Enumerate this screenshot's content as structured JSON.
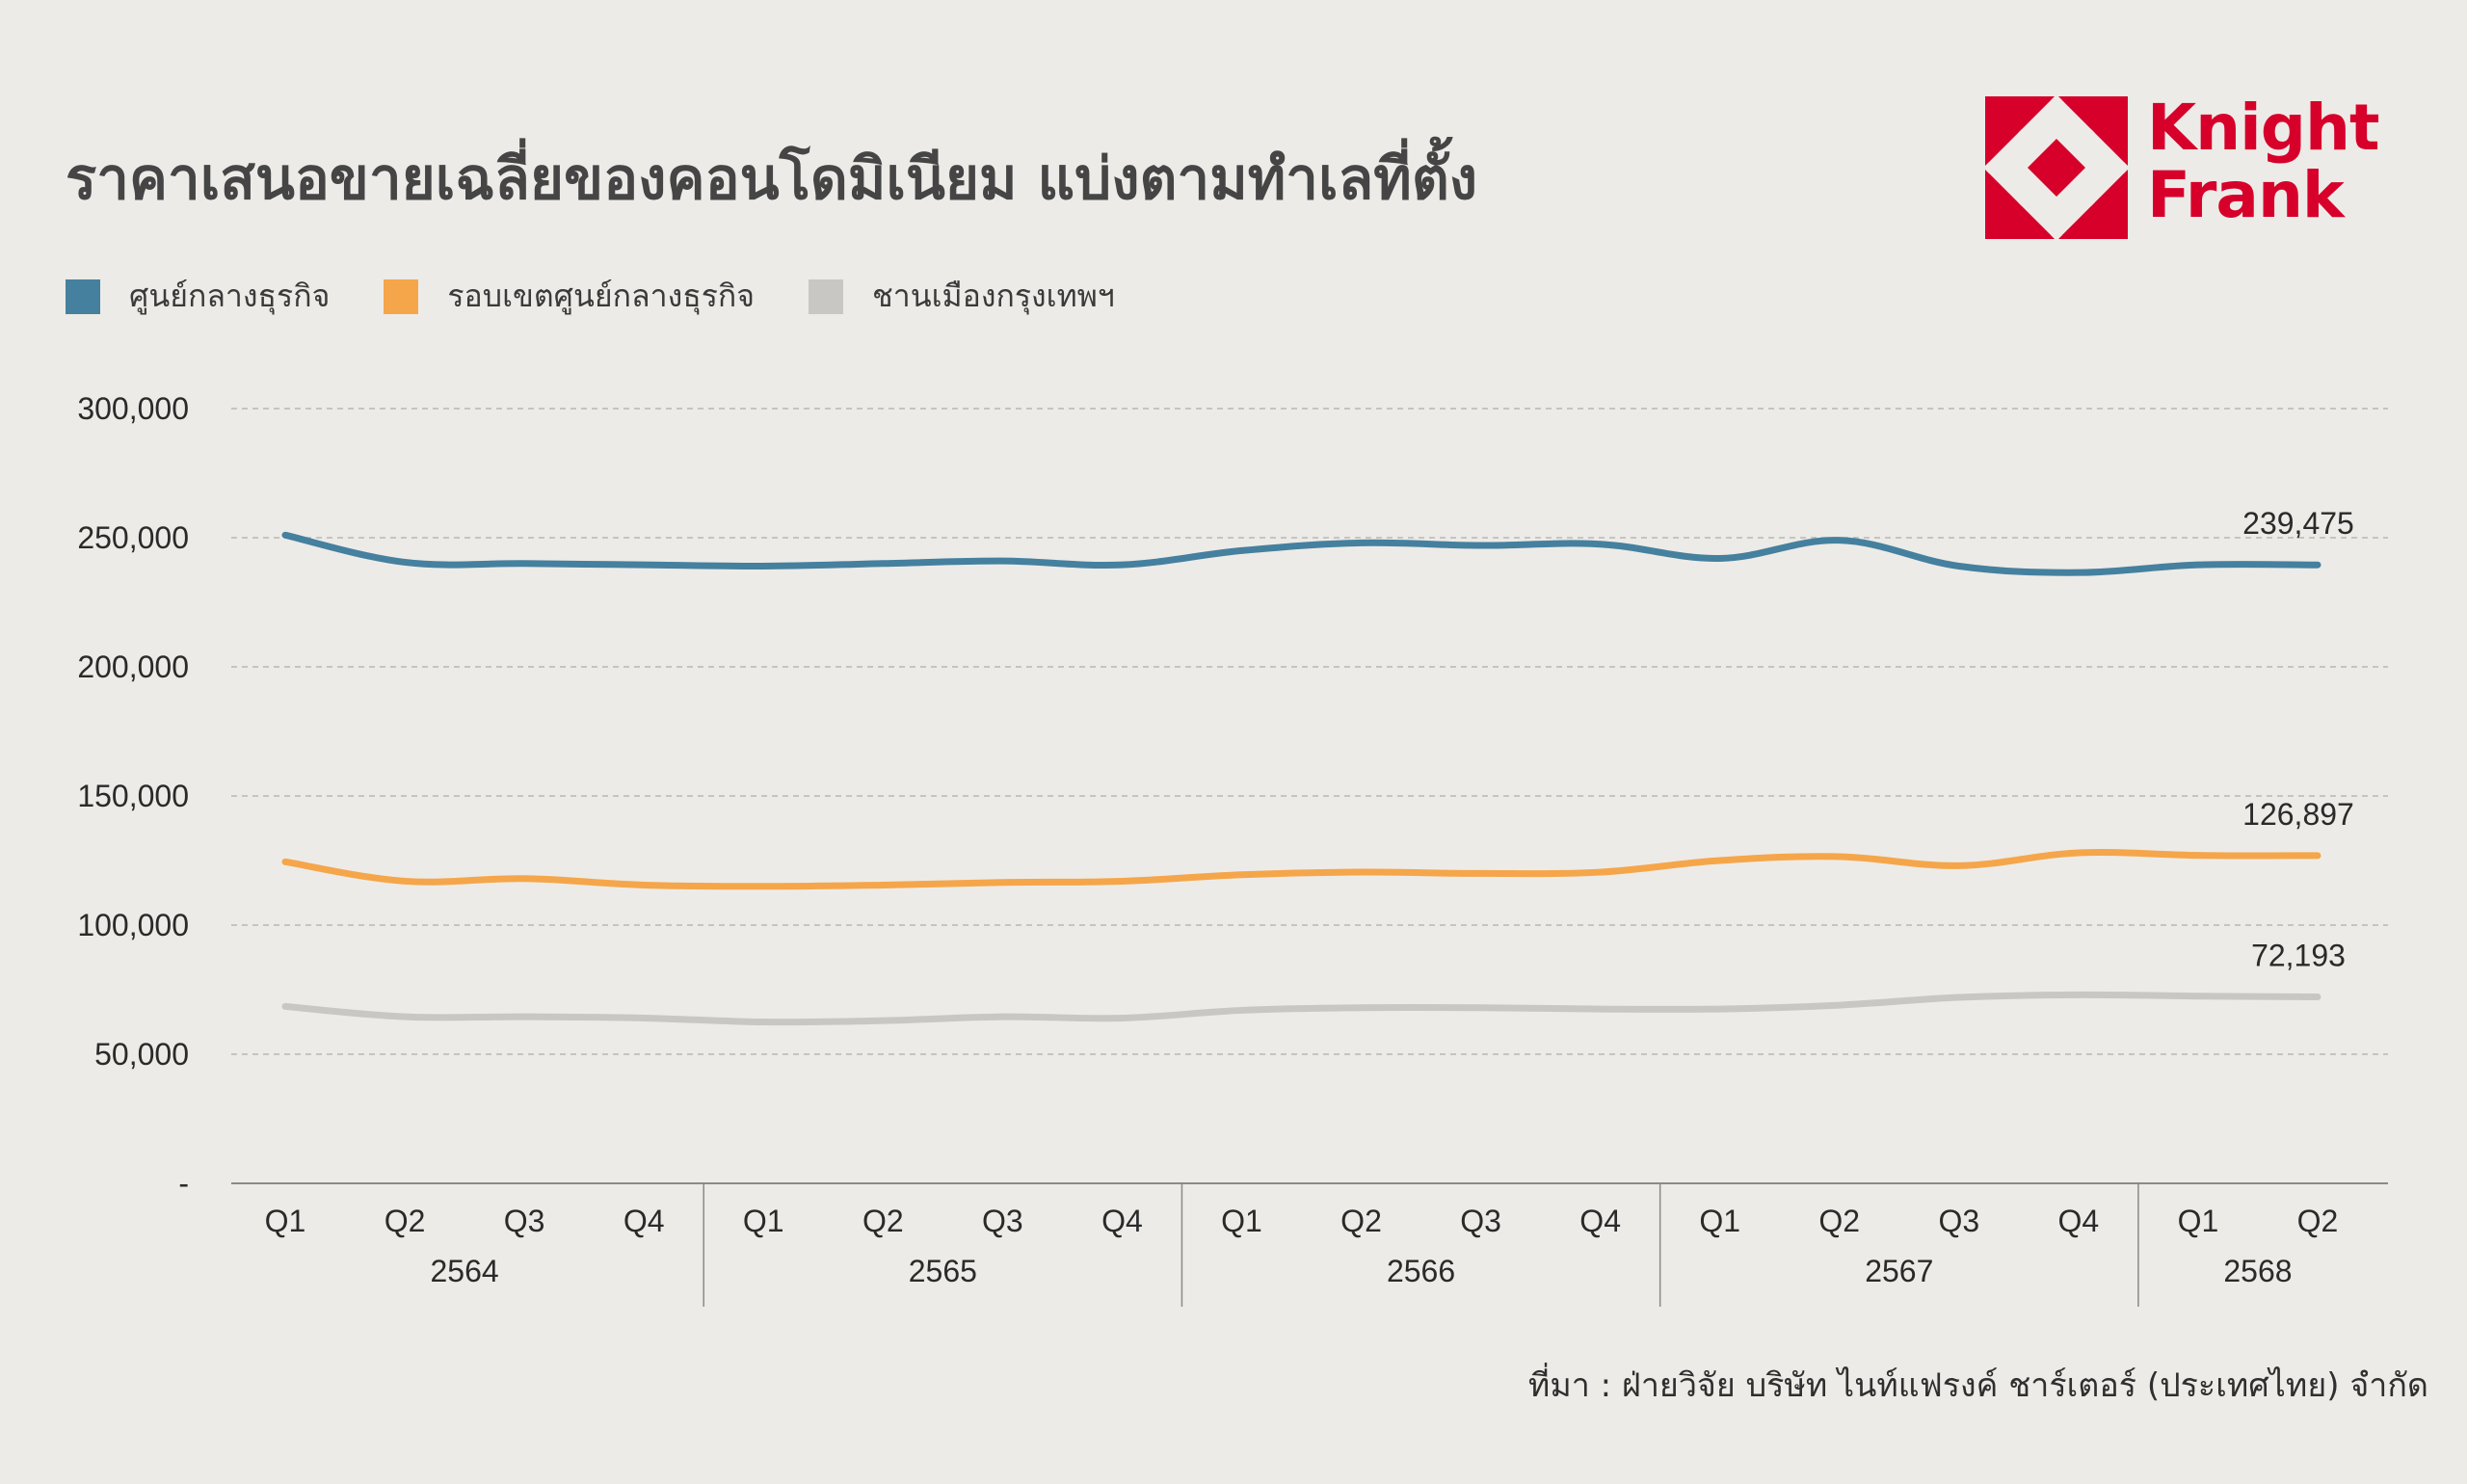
{
  "title": "ราคาเสนอขายเฉลี่ยของคอนโดมิเนียม แบ่งตามทำเลที่ตั้ง",
  "logo": {
    "line1": "Knight",
    "line2": "Frank",
    "color": "#d6002a"
  },
  "source": "ที่มา : ฝ่ายวิจัย บริษัท ไนท์แฟรงค์ ชาร์เตอร์ (ประเทศไทย) จำกัด",
  "chart_data": {
    "type": "line",
    "title": "ราคาเสนอขายเฉลี่ยของคอนโดมิเนียม แบ่งตามทำเลที่ตั้ง",
    "ylim": [
      0,
      300000
    ],
    "yticks": [
      {
        "value": 0,
        "label": "-"
      },
      {
        "value": 50000,
        "label": "50,000"
      },
      {
        "value": 100000,
        "label": "100,000"
      },
      {
        "value": 150000,
        "label": "150,000"
      },
      {
        "value": 200000,
        "label": "200,000"
      },
      {
        "value": 250000,
        "label": "250,000"
      },
      {
        "value": 300000,
        "label": "300,000"
      }
    ],
    "grid": true,
    "legend": "top-left",
    "quarters": [
      "Q1",
      "Q2",
      "Q3",
      "Q4",
      "Q1",
      "Q2",
      "Q3",
      "Q4",
      "Q1",
      "Q2",
      "Q3",
      "Q4",
      "Q1",
      "Q2",
      "Q3",
      "Q4",
      "Q1",
      "Q2"
    ],
    "years": [
      {
        "label": "2564",
        "start": 0,
        "end": 3
      },
      {
        "label": "2565",
        "start": 4,
        "end": 7
      },
      {
        "label": "2566",
        "start": 8,
        "end": 11
      },
      {
        "label": "2567",
        "start": 12,
        "end": 15
      },
      {
        "label": "2568",
        "start": 16,
        "end": 17
      }
    ],
    "series": [
      {
        "name": "ศูนย์กลางธุรกิจ",
        "color": "#45809f",
        "values": [
          251000,
          240500,
          240000,
          239500,
          239000,
          240000,
          241000,
          239500,
          245000,
          248000,
          247000,
          247500,
          242000,
          249000,
          239000,
          236500,
          239500,
          239475
        ],
        "end_label": "239,475"
      },
      {
        "name": "รอบเขตศูนย์กลางธุรกิจ",
        "color": "#f5a64a",
        "values": [
          124500,
          117000,
          118000,
          115500,
          115000,
          115500,
          116500,
          117000,
          119500,
          120500,
          120000,
          120500,
          125000,
          126500,
          123000,
          128000,
          127000,
          126897
        ],
        "end_label": "126,897"
      },
      {
        "name": "ชานเมืองกรุงเทพฯ",
        "color": "#c9c7c4",
        "values": [
          68500,
          64500,
          64500,
          64000,
          62500,
          63000,
          64500,
          64000,
          67000,
          68000,
          68000,
          67500,
          67500,
          69000,
          72000,
          73000,
          72500,
          72193
        ],
        "end_label": "72,193"
      }
    ]
  }
}
